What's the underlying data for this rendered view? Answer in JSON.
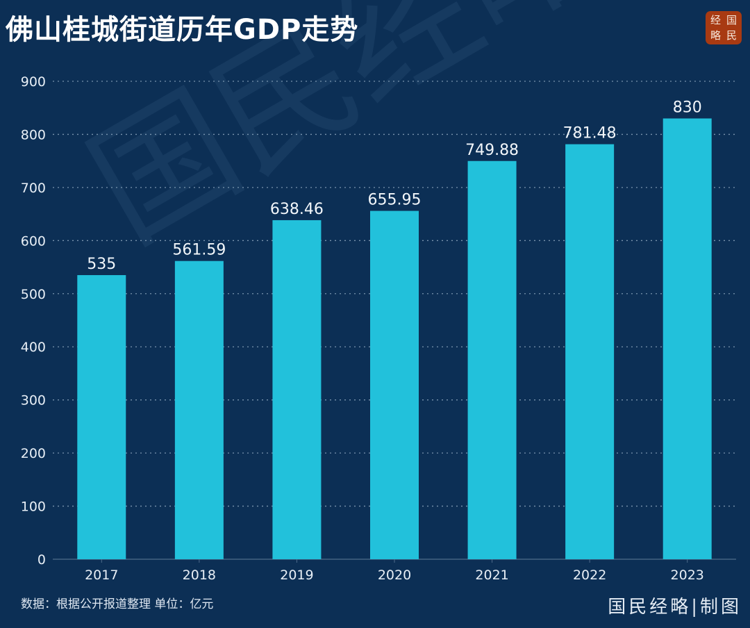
{
  "header": {
    "title": "佛山桂城街道历年GDP走势",
    "logo_chars": [
      "经",
      "国",
      "略",
      "民"
    ]
  },
  "watermark_text": "国民经略",
  "footer": {
    "source": "数据：根据公开报道整理 单位：亿元",
    "credit": "国民经略|制图"
  },
  "colors": {
    "background": "#0c2f55",
    "bar": "#22c1db",
    "logo_bg": "#a83a12",
    "grid": "#9fb6cc"
  },
  "chart_data": {
    "type": "bar",
    "title": "佛山桂城街道历年GDP走势",
    "xlabel": "",
    "ylabel": "",
    "unit": "亿元",
    "categories": [
      "2017",
      "2018",
      "2019",
      "2020",
      "2021",
      "2022",
      "2023"
    ],
    "values": [
      535,
      561.59,
      638.46,
      655.95,
      749.88,
      781.48,
      830
    ],
    "value_labels": [
      "535",
      "561.59",
      "638.46",
      "655.95",
      "749.88",
      "781.48",
      "830"
    ],
    "ylim": [
      0,
      900
    ],
    "yticks": [
      0,
      100,
      200,
      300,
      400,
      500,
      600,
      700,
      800,
      900
    ],
    "grid": true,
    "grid_style": "dotted",
    "legend": "none"
  }
}
